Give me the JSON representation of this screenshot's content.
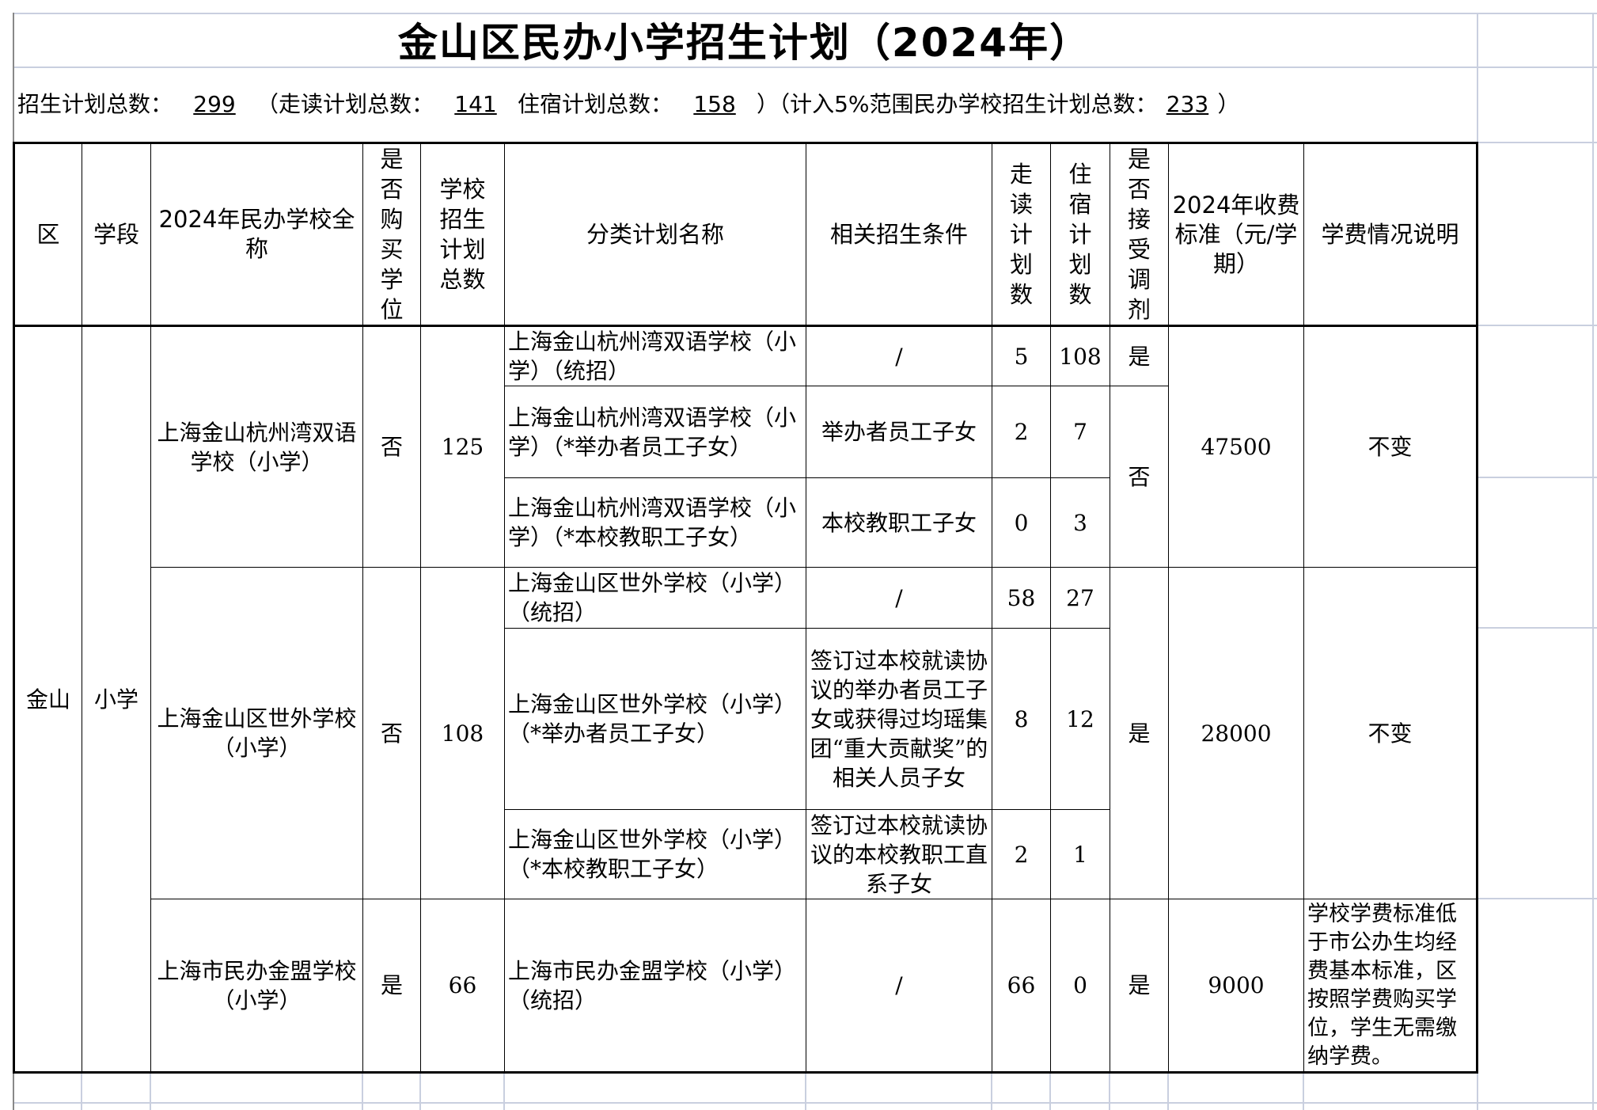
{
  "title": "金山区民办小学招生计划（2024年）",
  "summary": {
    "total_label": "招生计划总数：",
    "total": "299",
    "day_label": "（走读计划总数：",
    "day": "141",
    "boarding_label": "住宿计划总数：",
    "boarding": "158",
    "close1": "）",
    "pct_label": "（计入5%范围民办学校招生计划总数：",
    "pct": "233",
    "close2": "）"
  },
  "headers": [
    "区",
    "学段",
    "2024年民办学校全称",
    "是否购买学位",
    "学校招生计划总数",
    "分类计划名称",
    "相关招生条件",
    "走读计划数",
    "住宿计划数",
    "是否接受调剂",
    "2024年收费标准（元/学期）",
    "学费情况说明"
  ],
  "district": "金山",
  "stage": "小学",
  "schools": [
    {
      "name": "上海金山杭州湾双语学校（小学）",
      "buy": "否",
      "total": "125",
      "fee": "47500",
      "note": "不变",
      "plans": [
        {
          "name": "上海金山杭州湾双语学校（小学）（统招）",
          "cond": "/",
          "day": "5",
          "board": "108",
          "adjust": "是"
        },
        {
          "name": "上海金山杭州湾双语学校（小学）（*举办者员工子女）",
          "cond": "举办者员工子女",
          "day": "2",
          "board": "7",
          "adjust": "否"
        },
        {
          "name": "上海金山杭州湾双语学校（小学）（*本校教职工子女）",
          "cond": "本校教职工子女",
          "day": "0",
          "board": "3"
        }
      ]
    },
    {
      "name": "上海金山区世外学校（小学）",
      "buy": "否",
      "total": "108",
      "fee": "28000",
      "note": "不变",
      "adjust": "是",
      "plans": [
        {
          "name": "上海金山区世外学校（小学）（统招）",
          "cond": "/",
          "day": "58",
          "board": "27"
        },
        {
          "name": "上海金山区世外学校（小学）（*举办者员工子女）",
          "cond": "签订过本校就读协议的举办者员工子女或获得过均瑶集团“重大贡献奖”的相关人员子女",
          "day": "8",
          "board": "12"
        },
        {
          "name": "上海金山区世外学校（小学）（*本校教职工子女）",
          "cond": "签订过本校就读协议的本校教职工直系子女",
          "day": "2",
          "board": "1"
        }
      ]
    },
    {
      "name": "上海市民办金盟学校（小学）",
      "buy": "是",
      "total": "66",
      "fee": "9000",
      "note": "学校学费标准低于市公办生均经费基本标准，区按照学费购买学位，学生无需缴纳学费。",
      "plans": [
        {
          "name": "上海市民办金盟学校（小学）（统招）",
          "cond": "/",
          "day": "66",
          "board": "0",
          "adjust": "是"
        }
      ]
    }
  ]
}
